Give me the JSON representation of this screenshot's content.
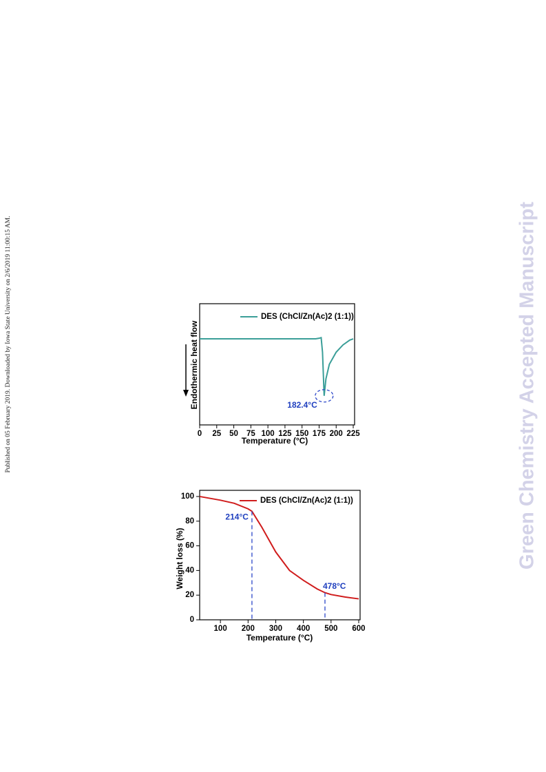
{
  "side_note": "Published on 05 February 2019. Downloaded by Iowa State University on 2/6/2019 11:00:15 AM.",
  "watermark": "Green Chemistry Accepted Manuscript",
  "chart_data": [
    {
      "type": "line",
      "x_label": "Temperature (°C)",
      "y_label": "Endothermic heat flow",
      "x": [
        0,
        25,
        50,
        75,
        100,
        125,
        150,
        170,
        175,
        178,
        180,
        182.4,
        185,
        190,
        200,
        210,
        220,
        225
      ],
      "series": [
        {
          "name": "DES (ChCl/Zn(Ac)2 (1:1))",
          "color": "#3a9e98",
          "values": [
            71,
            71,
            71,
            71,
            71,
            71,
            71,
            71,
            71.5,
            72,
            60,
            24,
            38,
            50,
            60,
            66,
            70,
            71
          ]
        }
      ],
      "xlim": [
        0,
        227
      ],
      "ylim": [
        0,
        100
      ],
      "xticks": [
        0,
        25,
        50,
        75,
        100,
        125,
        150,
        175,
        200,
        225
      ],
      "legend": "upper right",
      "annotations": [
        {
          "x": 182.4,
          "y": 24,
          "label": "182.4°C"
        }
      ]
    },
    {
      "type": "line",
      "x_label": "Temperature (°C)",
      "y_label": "Weight loss (%)",
      "x": [
        25,
        100,
        150,
        200,
        214,
        250,
        300,
        350,
        400,
        450,
        478,
        500,
        550,
        600
      ],
      "series": [
        {
          "name": "DES (ChCl/Zn(Ac)2 (1:1))",
          "color": "#d01c1c",
          "values": [
            100,
            97,
            94.5,
            90,
            88,
            75,
            55,
            40,
            32,
            25,
            22,
            20.5,
            18.5,
            17
          ]
        }
      ],
      "xlim": [
        25,
        605
      ],
      "ylim": [
        0,
        105
      ],
      "xticks": [
        100,
        200,
        300,
        400,
        500,
        600
      ],
      "yticks": [
        0,
        20,
        40,
        60,
        80,
        100
      ],
      "legend": "upper right",
      "annotations": [
        {
          "x": 214,
          "y": 88,
          "label": "214°C"
        },
        {
          "x": 478,
          "y": 22,
          "label": "478°C"
        }
      ]
    }
  ]
}
